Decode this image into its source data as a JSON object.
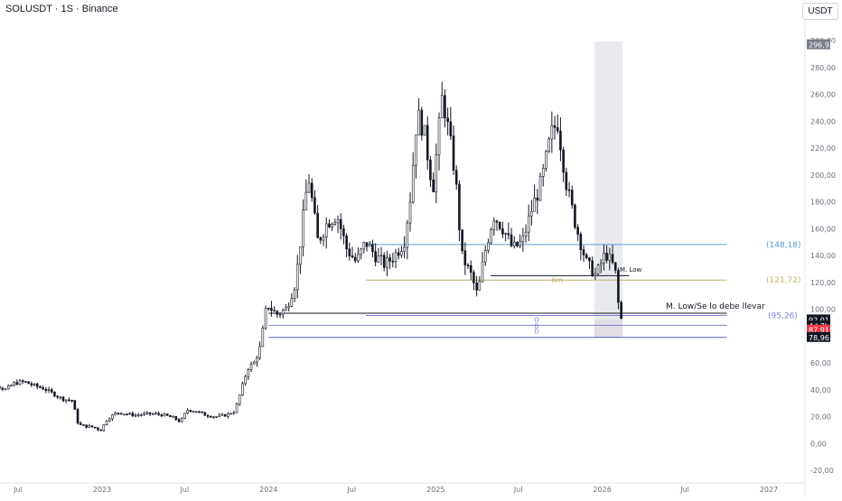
{
  "header": {
    "title": "SOLUSDT · 1S · Binance",
    "currency": "USDT"
  },
  "chart_data": {
    "type": "candlestick",
    "symbol": "SOLUSDT",
    "interval": "1S",
    "exchange": "Binance",
    "y_unit": "USDT",
    "ylim": [
      -23,
      305
    ],
    "yticks": [
      -20,
      0,
      20,
      40,
      60,
      80,
      100,
      120,
      140,
      160,
      180,
      200,
      220,
      240,
      260,
      280,
      300
    ],
    "ytick_labels": [
      "-20,00",
      "0,00",
      "20,00",
      "40,00",
      "60,00",
      "80,00",
      "100,00",
      "120,00",
      "140,00",
      "160,00",
      "180,00",
      "200,00",
      "220,00",
      "240,00",
      "260,00",
      "280,00",
      "300,00"
    ],
    "xticks": [
      {
        "label": "Jul",
        "date": "2022-07"
      },
      {
        "label": "2023",
        "date": "2023-01"
      },
      {
        "label": "Jul",
        "date": "2023-07"
      },
      {
        "label": "2024",
        "date": "2024-01"
      },
      {
        "label": "Jul",
        "date": "2024-07"
      },
      {
        "label": "2025",
        "date": "2025-01"
      },
      {
        "label": "Jul",
        "date": "2025-07"
      },
      {
        "label": "2026",
        "date": "2026-01"
      },
      {
        "label": "Jul",
        "date": "2026-07"
      },
      {
        "label": "2027",
        "date": "2027-01"
      }
    ],
    "price_path": [
      [
        "2022-04-01",
        46
      ],
      [
        "2022-04-22",
        42
      ],
      [
        "2022-05-13",
        44
      ],
      [
        "2022-06-03",
        40
      ],
      [
        "2022-06-24",
        45
      ],
      [
        "2022-07-15",
        46
      ],
      [
        "2022-08-05",
        43
      ],
      [
        "2022-08-26",
        41
      ],
      [
        "2022-09-16",
        37
      ],
      [
        "2022-10-07",
        33
      ],
      [
        "2022-10-28",
        32
      ],
      [
        "2022-11-10",
        14
      ],
      [
        "2022-11-24",
        13
      ],
      [
        "2022-12-15",
        12
      ],
      [
        "2022-12-29",
        10
      ],
      [
        "2023-01-12",
        18
      ],
      [
        "2023-02-02",
        23
      ],
      [
        "2023-02-23",
        22
      ],
      [
        "2023-03-16",
        21
      ],
      [
        "2023-04-06",
        22
      ],
      [
        "2023-04-27",
        22
      ],
      [
        "2023-05-18",
        21
      ],
      [
        "2023-06-08",
        19
      ],
      [
        "2023-06-22",
        16
      ],
      [
        "2023-07-06",
        25
      ],
      [
        "2023-07-27",
        24
      ],
      [
        "2023-08-17",
        21
      ],
      [
        "2023-09-07",
        20
      ],
      [
        "2023-09-28",
        21
      ],
      [
        "2023-10-19",
        24
      ],
      [
        "2023-11-02",
        40
      ],
      [
        "2023-11-16",
        56
      ],
      [
        "2023-11-30",
        60
      ],
      [
        "2023-12-14",
        72
      ],
      [
        "2023-12-28",
        104
      ],
      [
        "2024-01-18",
        96
      ],
      [
        "2024-02-08",
        100
      ],
      [
        "2024-02-29",
        120
      ],
      [
        "2024-03-14",
        160
      ],
      [
        "2024-03-28",
        200
      ],
      [
        "2024-04-18",
        150
      ],
      [
        "2024-05-09",
        165
      ],
      [
        "2024-05-30",
        170
      ],
      [
        "2024-06-20",
        145
      ],
      [
        "2024-07-11",
        135
      ],
      [
        "2024-08-01",
        150
      ],
      [
        "2024-08-22",
        140
      ],
      [
        "2024-09-12",
        133
      ],
      [
        "2024-10-03",
        140
      ],
      [
        "2024-10-24",
        150
      ],
      [
        "2024-11-07",
        185
      ],
      [
        "2024-11-21",
        245
      ],
      [
        "2024-12-05",
        235
      ],
      [
        "2024-12-26",
        190
      ],
      [
        "2025-01-16",
        260
      ],
      [
        "2025-01-30",
        230
      ],
      [
        "2025-02-13",
        200
      ],
      [
        "2025-02-27",
        140
      ],
      [
        "2025-03-20",
        125
      ],
      [
        "2025-04-03",
        110
      ],
      [
        "2025-04-17",
        140
      ],
      [
        "2025-05-08",
        170
      ],
      [
        "2025-05-29",
        160
      ],
      [
        "2025-06-19",
        145
      ],
      [
        "2025-07-10",
        150
      ],
      [
        "2025-07-31",
        175
      ],
      [
        "2025-08-21",
        195
      ],
      [
        "2025-09-11",
        230
      ],
      [
        "2025-09-25",
        240
      ],
      [
        "2025-10-16",
        190
      ],
      [
        "2025-11-06",
        160
      ],
      [
        "2025-11-27",
        135
      ],
      [
        "2025-12-18",
        125
      ],
      [
        "2026-01-08",
        142
      ],
      [
        "2026-01-29",
        130
      ],
      [
        "2026-02-05",
        105
      ],
      [
        "2026-02-12",
        92
      ]
    ],
    "highlight_region": {
      "from": "2025-12-15",
      "to": "2026-02-15"
    },
    "horizontal_levels": [
      {
        "label": "(148,18)",
        "price": 148.18,
        "from": "2024-08-01",
        "to": "2026-10-01",
        "color": "#5b9bd5"
      },
      {
        "label": "M. Low",
        "price": 125,
        "from": "2025-05-01",
        "to": "2026-03-01",
        "color": "#131722"
      },
      {
        "label": "6m",
        "price": 121.72,
        "from": "2024-08-01",
        "to": "2026-10-01",
        "color": "#bfb36a"
      },
      {
        "label": "(121,72)",
        "price": 121.72,
        "from": null,
        "to": null,
        "color": "#bfb36a"
      },
      {
        "label": "M. Low/Se lo debe llevar",
        "price": 97,
        "from": "2024-01-01",
        "to": "2026-10-01",
        "color": "#131722"
      },
      {
        "label": "(95,26)",
        "price": 95.26,
        "from": "2024-08-01",
        "to": "2026-10-01",
        "color": "#7b7fd6"
      },
      {
        "label": "O",
        "price": 92.5,
        "from": null,
        "to": null,
        "color": "#7b7fd6"
      },
      {
        "label": "B",
        "price": 88,
        "from": "2024-01-01",
        "to": "2026-10-01",
        "color": "#7b7fd6"
      },
      {
        "label": "D",
        "price": 84,
        "from": null,
        "to": null,
        "color": "#7b7fd6"
      },
      {
        "label": "",
        "price": 78.96,
        "from": "2024-01-01",
        "to": "2026-10-01",
        "color": "#5b5fd0"
      }
    ],
    "price_labels": [
      {
        "text": "296,93",
        "price": 296.93,
        "bg": "#787b86",
        "fg": "#ffffff"
      },
      {
        "text": "92,01",
        "price": 92.01,
        "bg": "#131722",
        "fg": "#ffffff"
      },
      {
        "text": "4d 7h",
        "price": 87.5,
        "bg": "#131722",
        "fg": "#ffffff"
      },
      {
        "text": "87,91",
        "price": 84.4,
        "bg": "#f23645",
        "fg": "#ffffff"
      },
      {
        "text": "78,96",
        "price": 78.96,
        "bg": "#131722",
        "fg": "#ffffff"
      }
    ]
  }
}
